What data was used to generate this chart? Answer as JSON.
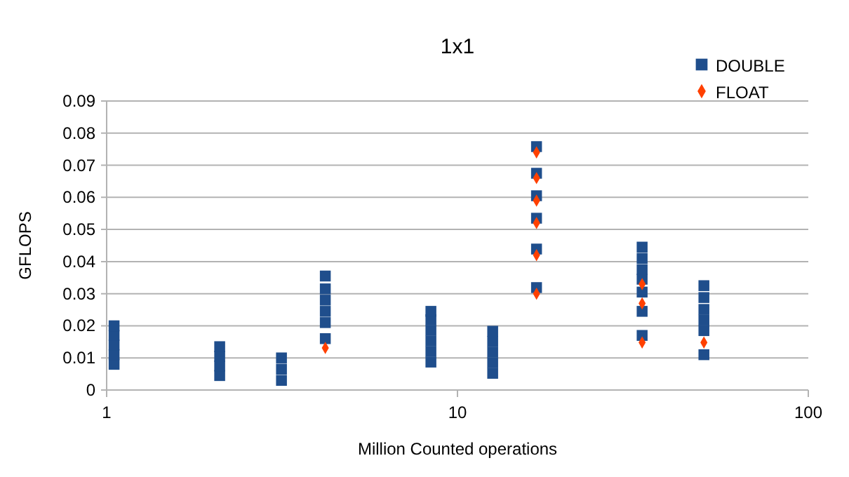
{
  "chart_data": {
    "type": "scatter",
    "title": "1x1",
    "xlabel": "Million Counted operations",
    "ylabel": "GFLOPS",
    "log": "x",
    "xlim": [
      1,
      100
    ],
    "xticks": [
      1,
      10,
      100
    ],
    "ylim": [
      0,
      0.09
    ],
    "yticks": [
      0,
      0.01,
      0.02,
      0.03,
      0.04,
      0.05,
      0.06,
      0.07,
      0.08,
      0.09
    ],
    "grid": "y",
    "legend": "top right",
    "series": [
      {
        "name": "DOUBLE",
        "color": "#1f4e8c",
        "marker": "square",
        "x": [
          1.05,
          1.05,
          1.05,
          1.05,
          1.05,
          2.1,
          2.1,
          2.1,
          2.1,
          3.15,
          3.15,
          3.15,
          4.2,
          4.2,
          4.2,
          4.2,
          4.2,
          4.2,
          8.4,
          8.4,
          8.4,
          8.4,
          8.4,
          8.4,
          12.6,
          12.6,
          12.6,
          12.6,
          12.6,
          16.8,
          16.8,
          16.8,
          16.8,
          16.8,
          16.8,
          33.6,
          33.6,
          33.6,
          33.6,
          33.6,
          33.6,
          33.6,
          50.4,
          50.4,
          50.4,
          50.4,
          50.4,
          50.4
        ],
        "values": [
          0.008,
          0.011,
          0.014,
          0.017,
          0.02,
          0.0045,
          0.0075,
          0.0105,
          0.0135,
          0.003,
          0.0065,
          0.01,
          0.021,
          0.0245,
          0.028,
          0.0315,
          0.0355,
          0.016,
          0.0087,
          0.012,
          0.0153,
          0.0186,
          0.0219,
          0.0245,
          0.0052,
          0.0085,
          0.0118,
          0.0151,
          0.0183,
          0.0758,
          0.0675,
          0.0605,
          0.0535,
          0.0439,
          0.0319,
          0.0445,
          0.041,
          0.0375,
          0.0345,
          0.0305,
          0.0245,
          0.017,
          0.011,
          0.0185,
          0.0218,
          0.0251,
          0.0288,
          0.0325
        ]
      },
      {
        "name": "FLOAT",
        "color": "#ff4000",
        "marker": "diamond",
        "x": [
          4.2,
          16.8,
          16.8,
          16.8,
          16.8,
          16.8,
          16.8,
          33.6,
          33.6,
          33.6,
          50.4
        ],
        "values": [
          0.0131,
          0.074,
          0.066,
          0.059,
          0.052,
          0.042,
          0.03,
          0.033,
          0.027,
          0.0148,
          0.0148
        ]
      }
    ]
  }
}
